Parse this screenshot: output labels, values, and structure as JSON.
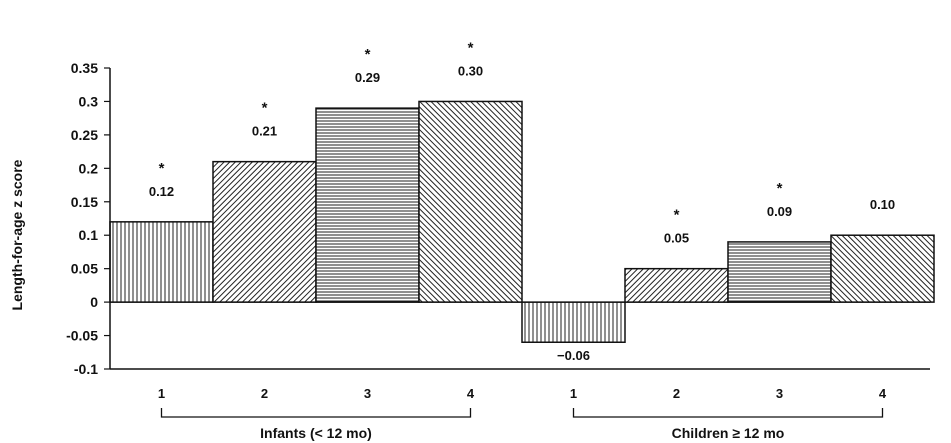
{
  "chart_data": {
    "type": "bar",
    "title": "",
    "ylabel": "Length-for-age z score",
    "xlabel": "",
    "ylim": [
      -0.1,
      0.35
    ],
    "yticks": [
      {
        "value": -0.1,
        "label": "-0.1"
      },
      {
        "value": -0.05,
        "label": "-0.05"
      },
      {
        "value": 0,
        "label": "0"
      },
      {
        "value": 0.05,
        "label": "0.05"
      },
      {
        "value": 0.1,
        "label": "0.1"
      },
      {
        "value": 0.15,
        "label": "0.15"
      },
      {
        "value": 0.2,
        "label": "0.2"
      },
      {
        "value": 0.25,
        "label": "0.25"
      },
      {
        "value": 0.3,
        "label": "0.3"
      },
      {
        "value": 0.35,
        "label": "0.35"
      }
    ],
    "grid": false,
    "legend": "none",
    "groups": [
      {
        "label": "Infants (< 12 mo)",
        "bars": [
          {
            "category": "1",
            "value": 0.12,
            "label": "0.12",
            "significant": true,
            "pattern": "vertical"
          },
          {
            "category": "2",
            "value": 0.21,
            "label": "0.21",
            "significant": true,
            "pattern": "diag-right"
          },
          {
            "category": "3",
            "value": 0.29,
            "label": "0.29",
            "significant": true,
            "pattern": "horizontal"
          },
          {
            "category": "4",
            "value": 0.3,
            "label": "0.30",
            "significant": true,
            "pattern": "diag-left"
          }
        ]
      },
      {
        "label": "Children ≥ 12 mo",
        "bars": [
          {
            "category": "1",
            "value": -0.06,
            "label": "−0.06",
            "significant": false,
            "pattern": "vertical"
          },
          {
            "category": "2",
            "value": 0.05,
            "label": "0.05",
            "significant": true,
            "pattern": "diag-right"
          },
          {
            "category": "3",
            "value": 0.09,
            "label": "0.09",
            "significant": true,
            "pattern": "horizontal"
          },
          {
            "category": "4",
            "value": 0.1,
            "label": "0.10",
            "significant": false,
            "pattern": "diag-left"
          }
        ]
      }
    ],
    "significance_marker": "*",
    "colors": {
      "ink": "#111111",
      "background": "#ffffff"
    }
  }
}
